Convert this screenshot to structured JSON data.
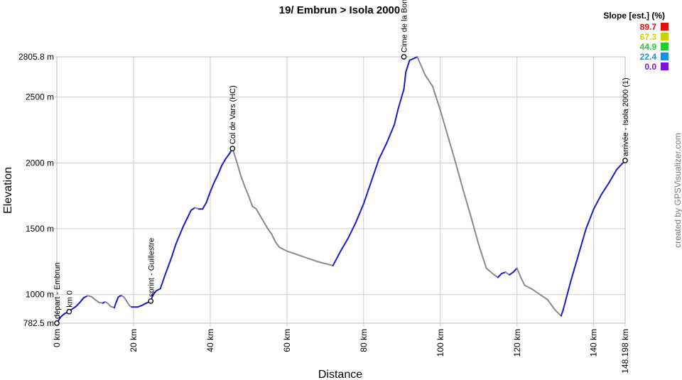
{
  "chart_data": {
    "type": "area",
    "title": "19/ Embrun > Isola 2000",
    "xlabel": "Distance",
    "ylabel": "Elevation",
    "credit": "created by GPSVisualizer.com",
    "xlim": [
      0,
      148.198
    ],
    "ylim": [
      782.5,
      2805.8
    ],
    "x_ticks": [
      {
        "value": 0,
        "label": "0 km"
      },
      {
        "value": 20,
        "label": "20 km"
      },
      {
        "value": 40,
        "label": "40 km"
      },
      {
        "value": 60,
        "label": "60 km"
      },
      {
        "value": 80,
        "label": "80 km"
      },
      {
        "value": 100,
        "label": "100 km"
      },
      {
        "value": 120,
        "label": "120 km"
      },
      {
        "value": 140,
        "label": "140 km"
      },
      {
        "value": 148.198,
        "label": "148.198 km"
      }
    ],
    "y_ticks": [
      {
        "value": 782.5,
        "label": "782.5 m"
      },
      {
        "value": 1000,
        "label": "1000 m"
      },
      {
        "value": 1500,
        "label": "1500 m"
      },
      {
        "value": 2000,
        "label": "2000 m"
      },
      {
        "value": 2500,
        "label": "2500 m"
      },
      {
        "value": 2805.8,
        "label": "2805.8 m"
      }
    ],
    "grid": true,
    "legend": {
      "title": "Slope [est.] (%)",
      "position": "top-right",
      "entries": [
        {
          "label": "89.7",
          "color": "#e01010"
        },
        {
          "label": "67.3",
          "color": "#c8d400"
        },
        {
          "label": "44.9",
          "color": "#22cc33"
        },
        {
          "label": "22.4",
          "color": "#1a8fe0"
        },
        {
          "label": "0.0",
          "color": "#7a14d6"
        }
      ]
    },
    "line_colors": {
      "climb": "#1a1ad0",
      "descent": "#8a8a8a"
    },
    "waypoints": [
      {
        "x": 0,
        "y": 782.5,
        "label": "départ - Embrun"
      },
      {
        "x": 3.2,
        "y": 870,
        "label": "km 0"
      },
      {
        "x": 24.5,
        "y": 950,
        "label": "sprint - Guillestre"
      },
      {
        "x": 45.8,
        "y": 2109,
        "label": "Col de Vars (HC)"
      },
      {
        "x": 90.5,
        "y": 2805.8,
        "label": "Cime de la Bonette"
      },
      {
        "x": 148.198,
        "y": 2018,
        "label": "arrivée - Isola 2000 (1)"
      }
    ],
    "series": [
      {
        "x": [
          0,
          1,
          2,
          3.2,
          4,
          5,
          6,
          7,
          8,
          9,
          10,
          11,
          12,
          12.6,
          13.2,
          14,
          15,
          15.4,
          16,
          16.5,
          17,
          17.5,
          18,
          18.5,
          19,
          19.5,
          20,
          21,
          22,
          23,
          24.5,
          25,
          26,
          27,
          28,
          29,
          30,
          31,
          32,
          33,
          34,
          35,
          36,
          37,
          38,
          39,
          40,
          41,
          42,
          43,
          44,
          45,
          45.8,
          47,
          48,
          49,
          50,
          51,
          52,
          53,
          54,
          55,
          56,
          57,
          58,
          60,
          62,
          64,
          66,
          68,
          70,
          72,
          74,
          76,
          78,
          80,
          82,
          84,
          86,
          88,
          89,
          90.5,
          91,
          92,
          94,
          96,
          98,
          100,
          102,
          104,
          106,
          108,
          110,
          112,
          114,
          115,
          116,
          117,
          118,
          119,
          120,
          121,
          122,
          124,
          126,
          128,
          130,
          131.5,
          132,
          134,
          136,
          138,
          140,
          142,
          144,
          146,
          148.198
        ],
        "y": [
          782,
          830,
          855,
          870,
          890,
          910,
          940,
          975,
          990,
          985,
          960,
          940,
          935,
          945,
          935,
          910,
          900,
          935,
          980,
          990,
          990,
          980,
          960,
          935,
          915,
          905,
          905,
          905,
          915,
          930,
          950,
          995,
          1030,
          1045,
          1130,
          1210,
          1290,
          1380,
          1450,
          1520,
          1580,
          1640,
          1660,
          1650,
          1650,
          1700,
          1780,
          1850,
          1910,
          1980,
          2030,
          2070,
          2109,
          2000,
          1900,
          1820,
          1750,
          1670,
          1650,
          1600,
          1550,
          1500,
          1460,
          1400,
          1360,
          1330,
          1310,
          1290,
          1270,
          1250,
          1235,
          1220,
          1330,
          1430,
          1550,
          1690,
          1860,
          2030,
          2150,
          2290,
          2410,
          2560,
          2690,
          2780,
          2805,
          2670,
          2580,
          2400,
          2200,
          2000,
          1790,
          1590,
          1380,
          1200,
          1150,
          1130,
          1160,
          1170,
          1150,
          1170,
          1200,
          1130,
          1070,
          1040,
          1000,
          960,
          880,
          838,
          880,
          1100,
          1300,
          1500,
          1650,
          1760,
          1850,
          1950,
          2018
        ]
      }
    ]
  }
}
